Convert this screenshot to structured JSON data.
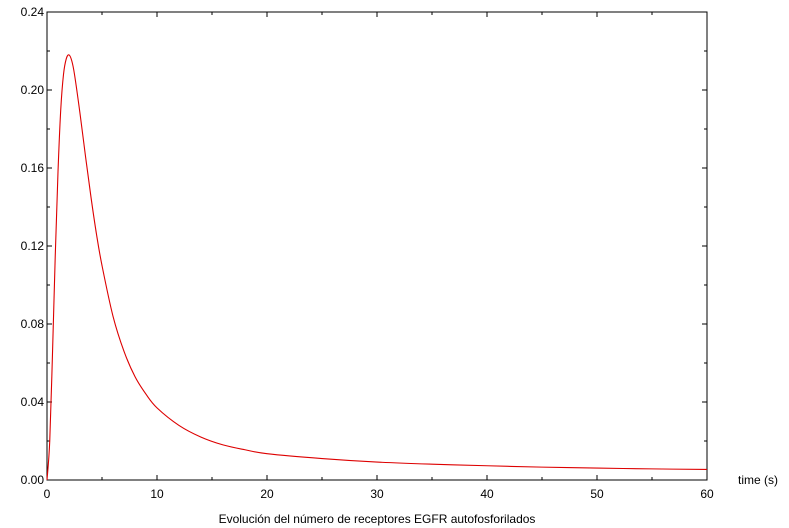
{
  "chart_data": {
    "type": "line",
    "title": "",
    "xlabel": "time (s)",
    "caption": "Evolución del número de receptores EGFR autofosforilados",
    "ylabel": "",
    "xlim": [
      0,
      60
    ],
    "ylim": [
      0,
      0.24
    ],
    "x_ticks": [
      0,
      10,
      20,
      30,
      40,
      50,
      60
    ],
    "x_tick_labels": [
      "0",
      "10",
      "20",
      "30",
      "40",
      "50",
      "60"
    ],
    "y_ticks": [
      0,
      0.04,
      0.08,
      0.12,
      0.16,
      0.2,
      0.24
    ],
    "y_tick_labels": [
      "0.00",
      "0.04",
      "0.08",
      "0.12",
      "0.16",
      "0.20",
      "0.24"
    ],
    "grid": false,
    "series": [
      {
        "color": "#dd0000",
        "x": [
          0,
          0.25,
          0.5,
          0.75,
          1.0,
          1.25,
          1.5,
          1.75,
          2.0,
          2.25,
          2.5,
          3.0,
          3.5,
          4.0,
          4.5,
          5.0,
          6.0,
          7.0,
          8.0,
          9.0,
          10.0,
          12.0,
          14.0,
          16.0,
          18.0,
          20.0,
          25.0,
          30.0,
          35.0,
          40.0,
          45.0,
          50.0,
          55.0,
          60.0
        ],
        "y": [
          0.0,
          0.02,
          0.065,
          0.115,
          0.158,
          0.19,
          0.208,
          0.216,
          0.218,
          0.215,
          0.208,
          0.188,
          0.166,
          0.145,
          0.126,
          0.11,
          0.084,
          0.066,
          0.053,
          0.044,
          0.037,
          0.028,
          0.022,
          0.018,
          0.0155,
          0.0135,
          0.011,
          0.0092,
          0.0081,
          0.0073,
          0.0066,
          0.0061,
          0.0057,
          0.0054
        ]
      }
    ]
  }
}
